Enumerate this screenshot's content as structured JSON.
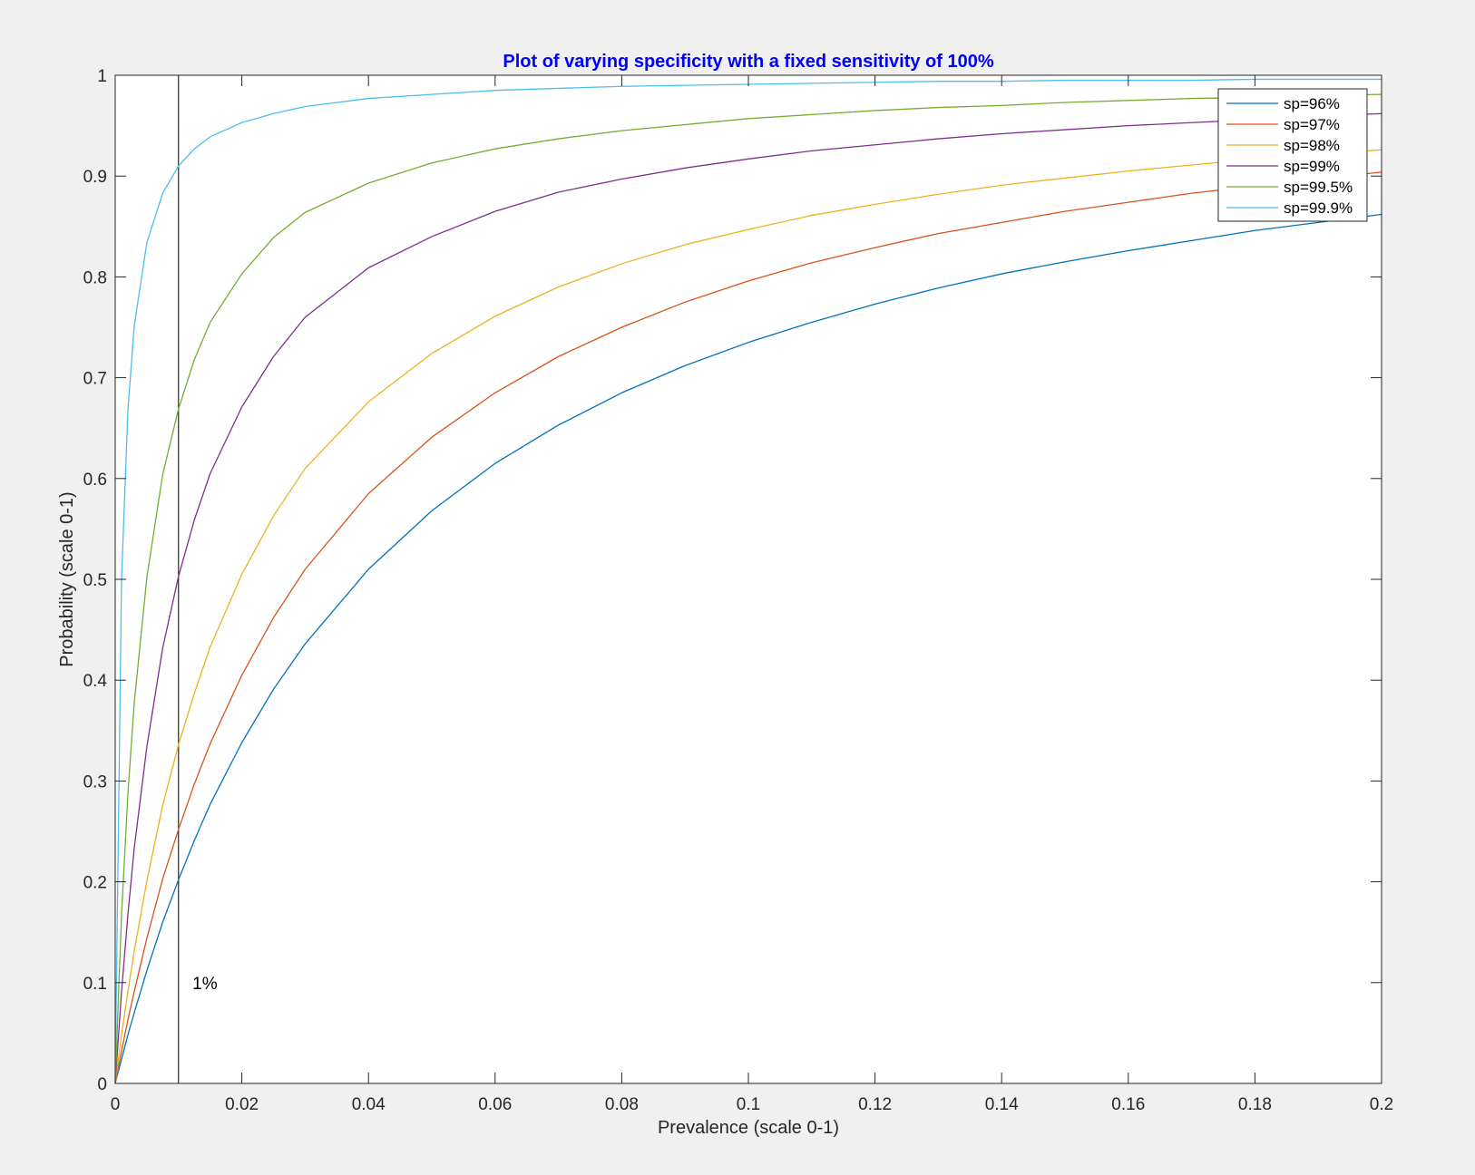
{
  "chart_data": {
    "type": "line",
    "title": "Plot of varying specificity with a fixed sensitivity of 100%",
    "title_color": "#0000ff",
    "xlabel": "Prevalence (scale 0-1)",
    "ylabel": "Probability (scale 0-1)",
    "xlim": [
      0,
      0.2
    ],
    "ylim": [
      0,
      1
    ],
    "x_ticks": [
      "0",
      "0.02",
      "0.04",
      "0.06",
      "0.08",
      "0.1",
      "0.12",
      "0.14",
      "0.16",
      "0.18",
      "0.2"
    ],
    "y_ticks": [
      "0",
      "0.1",
      "0.2",
      "0.3",
      "0.4",
      "0.5",
      "0.6",
      "0.7",
      "0.8",
      "0.9",
      "1"
    ],
    "grid": false,
    "legend_position": "top-right",
    "x": [
      0,
      0.001,
      0.002,
      0.003,
      0.005,
      0.0075,
      0.01,
      0.0125,
      0.015,
      0.02,
      0.025,
      0.03,
      0.04,
      0.05,
      0.06,
      0.07,
      0.08,
      0.09,
      0.1,
      0.11,
      0.12,
      0.13,
      0.14,
      0.15,
      0.16,
      0.17,
      0.18,
      0.19,
      0.2
    ],
    "series": [
      {
        "name": "sp=96%",
        "color": "#0072bd",
        "values": [
          0,
          0.024,
          0.048,
          0.07,
          0.112,
          0.16,
          0.202,
          0.241,
          0.277,
          0.338,
          0.391,
          0.436,
          0.51,
          0.568,
          0.615,
          0.653,
          0.685,
          0.712,
          0.735,
          0.755,
          0.773,
          0.789,
          0.803,
          0.815,
          0.826,
          0.836,
          0.846,
          0.854,
          0.862
        ]
      },
      {
        "name": "sp=97%",
        "color": "#d95319",
        "values": [
          0,
          0.032,
          0.063,
          0.091,
          0.144,
          0.203,
          0.252,
          0.297,
          0.337,
          0.405,
          0.462,
          0.51,
          0.585,
          0.641,
          0.685,
          0.721,
          0.75,
          0.775,
          0.796,
          0.814,
          0.829,
          0.843,
          0.854,
          0.865,
          0.874,
          0.883,
          0.89,
          0.897,
          0.904
        ]
      },
      {
        "name": "sp=98%",
        "color": "#edb120",
        "values": [
          0,
          0.048,
          0.091,
          0.131,
          0.201,
          0.276,
          0.336,
          0.387,
          0.433,
          0.505,
          0.563,
          0.61,
          0.676,
          0.724,
          0.761,
          0.79,
          0.813,
          0.832,
          0.847,
          0.861,
          0.872,
          0.882,
          0.891,
          0.898,
          0.905,
          0.911,
          0.917,
          0.922,
          0.926
        ]
      },
      {
        "name": "sp=99%",
        "color": "#7e2f8e",
        "values": [
          0,
          0.091,
          0.167,
          0.233,
          0.334,
          0.432,
          0.503,
          0.559,
          0.605,
          0.671,
          0.721,
          0.76,
          0.809,
          0.84,
          0.865,
          0.884,
          0.897,
          0.908,
          0.917,
          0.925,
          0.931,
          0.937,
          0.942,
          0.946,
          0.95,
          0.953,
          0.956,
          0.959,
          0.962
        ]
      },
      {
        "name": "sp=99.5%",
        "color": "#77ac30",
        "values": [
          0,
          0.167,
          0.287,
          0.377,
          0.502,
          0.604,
          0.669,
          0.718,
          0.755,
          0.803,
          0.839,
          0.864,
          0.893,
          0.913,
          0.927,
          0.937,
          0.945,
          0.951,
          0.957,
          0.961,
          0.965,
          0.968,
          0.97,
          0.973,
          0.975,
          0.977,
          0.978,
          0.98,
          0.981
        ]
      },
      {
        "name": "sp=99.9%",
        "color": "#4dbeee",
        "values": [
          0,
          0.5,
          0.667,
          0.751,
          0.834,
          0.883,
          0.91,
          0.927,
          0.939,
          0.953,
          0.962,
          0.969,
          0.977,
          0.981,
          0.985,
          0.987,
          0.989,
          0.99,
          0.991,
          0.992,
          0.993,
          0.994,
          0.994,
          0.995,
          0.995,
          0.995,
          0.996,
          0.996,
          0.996
        ]
      }
    ],
    "vertical_line": {
      "x": 0.01,
      "color": "#000000"
    },
    "annotations": [
      {
        "text": "1%",
        "x": 0.0122,
        "y": 0.1
      }
    ]
  }
}
